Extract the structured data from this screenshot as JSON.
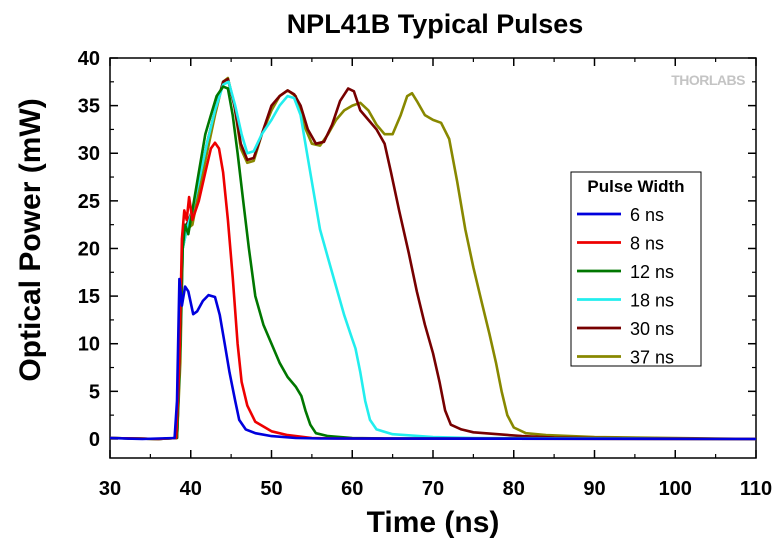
{
  "chart_data": {
    "type": "line",
    "title": "NPL41B Typical Pulses",
    "xlabel": "Time (ns)",
    "ylabel": "Optical Power (mW)",
    "xlim": [
      30,
      110
    ],
    "ylim": [
      -2,
      40
    ],
    "xticks": [
      30,
      40,
      50,
      60,
      70,
      80,
      90,
      100,
      110
    ],
    "yticks": [
      0,
      5,
      10,
      15,
      20,
      25,
      30,
      35,
      40
    ],
    "grid": false,
    "legend_title": "Pulse Width",
    "legend_position": "right",
    "watermark": "THORLABS",
    "series": [
      {
        "name": "6 ns",
        "color": "#0000dd",
        "points": [
          [
            30,
            0.1
          ],
          [
            34,
            0
          ],
          [
            38,
            0.1
          ],
          [
            38.3,
            4
          ],
          [
            38.6,
            16.8
          ],
          [
            38.9,
            14
          ],
          [
            39.3,
            16
          ],
          [
            39.7,
            15.5
          ],
          [
            40.3,
            13.1
          ],
          [
            40.8,
            13.4
          ],
          [
            41.5,
            14.5
          ],
          [
            42.2,
            15.1
          ],
          [
            43,
            14.9
          ],
          [
            43.6,
            13
          ],
          [
            44.2,
            10
          ],
          [
            44.8,
            7
          ],
          [
            45.5,
            4
          ],
          [
            46,
            2
          ],
          [
            46.8,
            1
          ],
          [
            48,
            0.6
          ],
          [
            50,
            0.3
          ],
          [
            53,
            0.1
          ],
          [
            56,
            0.05
          ],
          [
            110,
            0
          ]
        ]
      },
      {
        "name": "8 ns",
        "color": "#ee0000",
        "points": [
          [
            30,
            0.1
          ],
          [
            36,
            0
          ],
          [
            38.2,
            0.1
          ],
          [
            38.6,
            8
          ],
          [
            38.9,
            21
          ],
          [
            39.2,
            24
          ],
          [
            39.5,
            23
          ],
          [
            39.8,
            25.4
          ],
          [
            40.2,
            23
          ],
          [
            41,
            25
          ],
          [
            41.8,
            28
          ],
          [
            42.5,
            30.5
          ],
          [
            43,
            31.1
          ],
          [
            43.5,
            30.5
          ],
          [
            44,
            28
          ],
          [
            44.6,
            23
          ],
          [
            45.2,
            17
          ],
          [
            45.8,
            10
          ],
          [
            46.3,
            6
          ],
          [
            47,
            3.5
          ],
          [
            48,
            1.8
          ],
          [
            50,
            0.8
          ],
          [
            52,
            0.4
          ],
          [
            55,
            0.1
          ],
          [
            58,
            0.05
          ],
          [
            110,
            0
          ]
        ]
      },
      {
        "name": "12 ns",
        "color": "#007700",
        "points": [
          [
            30,
            0.1
          ],
          [
            36,
            0
          ],
          [
            38.3,
            0.1
          ],
          [
            38.7,
            10
          ],
          [
            39,
            20
          ],
          [
            39.3,
            22.5
          ],
          [
            39.7,
            21.5
          ],
          [
            40.2,
            24
          ],
          [
            41,
            28
          ],
          [
            41.8,
            32
          ],
          [
            42.5,
            34
          ],
          [
            43.2,
            36
          ],
          [
            44,
            37
          ],
          [
            44.6,
            36.8
          ],
          [
            45.2,
            34
          ],
          [
            45.8,
            30
          ],
          [
            46.5,
            25
          ],
          [
            47.2,
            20
          ],
          [
            48,
            15
          ],
          [
            49,
            12
          ],
          [
            50,
            10
          ],
          [
            51,
            8
          ],
          [
            52,
            6.5
          ],
          [
            53,
            5.5
          ],
          [
            53.7,
            4.5
          ],
          [
            54.2,
            3
          ],
          [
            54.8,
            1.5
          ],
          [
            55.5,
            0.6
          ],
          [
            57,
            0.3
          ],
          [
            60,
            0.1
          ],
          [
            64,
            0.05
          ],
          [
            110,
            0
          ]
        ]
      },
      {
        "name": "18 ns",
        "color": "#22eeee",
        "points": [
          [
            30,
            0.1
          ],
          [
            36,
            0
          ],
          [
            38.3,
            0.1
          ],
          [
            38.7,
            10
          ],
          [
            39,
            20
          ],
          [
            39.5,
            22
          ],
          [
            40.2,
            24
          ],
          [
            41,
            27
          ],
          [
            42,
            31
          ],
          [
            43,
            34.5
          ],
          [
            44,
            37.2
          ],
          [
            44.7,
            37.5
          ],
          [
            45.5,
            35
          ],
          [
            46.3,
            32
          ],
          [
            47,
            30
          ],
          [
            47.8,
            30.2
          ],
          [
            48.8,
            32
          ],
          [
            50,
            33.5
          ],
          [
            51,
            35
          ],
          [
            52,
            36
          ],
          [
            52.8,
            35.8
          ],
          [
            53.6,
            34
          ],
          [
            54.4,
            30
          ],
          [
            55.2,
            26
          ],
          [
            56,
            22
          ],
          [
            57,
            19
          ],
          [
            58,
            16
          ],
          [
            59,
            13
          ],
          [
            59.8,
            11
          ],
          [
            60.4,
            9.5
          ],
          [
            61,
            7
          ],
          [
            61.6,
            4
          ],
          [
            62.2,
            2
          ],
          [
            63,
            1
          ],
          [
            65,
            0.5
          ],
          [
            70,
            0.2
          ],
          [
            75,
            0.1
          ],
          [
            110,
            0
          ]
        ]
      },
      {
        "name": "30 ns",
        "color": "#770000",
        "points": [
          [
            30,
            0.1
          ],
          [
            36,
            0
          ],
          [
            38.3,
            0.1
          ],
          [
            38.7,
            10
          ],
          [
            39,
            21
          ],
          [
            39.5,
            22.5
          ],
          [
            40.2,
            24
          ],
          [
            41,
            27
          ],
          [
            42,
            31
          ],
          [
            43,
            34.5
          ],
          [
            44,
            37.5
          ],
          [
            44.6,
            37.8
          ],
          [
            45.4,
            35
          ],
          [
            46.2,
            31
          ],
          [
            47,
            29.3
          ],
          [
            47.8,
            29.5
          ],
          [
            48.8,
            32
          ],
          [
            50,
            35
          ],
          [
            51,
            36
          ],
          [
            52,
            36.6
          ],
          [
            52.8,
            36.2
          ],
          [
            53.6,
            35
          ],
          [
            54.5,
            32.5
          ],
          [
            55.5,
            31
          ],
          [
            56.5,
            31.2
          ],
          [
            57.5,
            33
          ],
          [
            58.5,
            35.5
          ],
          [
            59.5,
            36.8
          ],
          [
            60.2,
            36.5
          ],
          [
            61,
            34.5
          ],
          [
            62,
            33.5
          ],
          [
            63,
            32.5
          ],
          [
            64,
            31
          ],
          [
            64.8,
            28
          ],
          [
            65.8,
            24
          ],
          [
            67,
            19.5
          ],
          [
            68,
            15.5
          ],
          [
            69,
            12
          ],
          [
            70,
            9
          ],
          [
            70.8,
            6
          ],
          [
            71.5,
            3
          ],
          [
            72.2,
            1.5
          ],
          [
            73.5,
            1
          ],
          [
            75,
            0.7
          ],
          [
            78,
            0.5
          ],
          [
            81,
            0.3
          ],
          [
            85,
            0.15
          ],
          [
            90,
            0.1
          ],
          [
            110,
            0
          ]
        ]
      },
      {
        "name": "37 ns",
        "color": "#888800",
        "points": [
          [
            30,
            0.1
          ],
          [
            36,
            0
          ],
          [
            38.3,
            0.1
          ],
          [
            38.7,
            8
          ],
          [
            39,
            20
          ],
          [
            39.5,
            22
          ],
          [
            40.2,
            22.5
          ],
          [
            41,
            26
          ],
          [
            42,
            30
          ],
          [
            43,
            34
          ],
          [
            44,
            37.5
          ],
          [
            44.6,
            37.9
          ],
          [
            45.4,
            35
          ],
          [
            46.2,
            30.5
          ],
          [
            47,
            29
          ],
          [
            47.8,
            29.2
          ],
          [
            48.8,
            32
          ],
          [
            50,
            34.5
          ],
          [
            51,
            36
          ],
          [
            52,
            36.6
          ],
          [
            53,
            36
          ],
          [
            54,
            33
          ],
          [
            55,
            31
          ],
          [
            56,
            30.8
          ],
          [
            57,
            32
          ],
          [
            58,
            33.5
          ],
          [
            59,
            34.5
          ],
          [
            60,
            35
          ],
          [
            61,
            35.3
          ],
          [
            62,
            34.5
          ],
          [
            63,
            33
          ],
          [
            64,
            32
          ],
          [
            65,
            32
          ],
          [
            66,
            34
          ],
          [
            66.8,
            36
          ],
          [
            67.4,
            36.3
          ],
          [
            68,
            35.5
          ],
          [
            69,
            34
          ],
          [
            70,
            33.5
          ],
          [
            71,
            33.2
          ],
          [
            72,
            31.5
          ],
          [
            73,
            27
          ],
          [
            74,
            22
          ],
          [
            75,
            18
          ],
          [
            76,
            14.5
          ],
          [
            77,
            11
          ],
          [
            77.8,
            8
          ],
          [
            78.5,
            5
          ],
          [
            79.2,
            2.5
          ],
          [
            80,
            1.2
          ],
          [
            81.5,
            0.6
          ],
          [
            84,
            0.4
          ],
          [
            90,
            0.2
          ],
          [
            100,
            0.1
          ],
          [
            110,
            0
          ]
        ]
      }
    ]
  }
}
